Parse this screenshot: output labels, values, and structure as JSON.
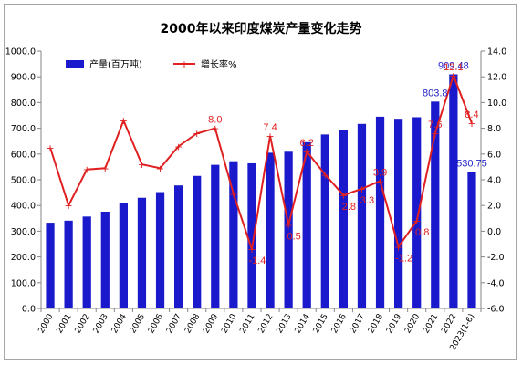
{
  "chart_data": {
    "type": "bar",
    "title": "2000年以来印度煤炭产量变化走势",
    "categories": [
      "2000",
      "2001",
      "2002",
      "2003",
      "2004",
      "2005",
      "2006",
      "2007",
      "2008",
      "2009",
      "2010",
      "2011",
      "2012",
      "2013",
      "2014",
      "2015",
      "2016",
      "2017",
      "2018",
      "2019",
      "2020",
      "2021",
      "2022",
      "2023(1-6)"
    ],
    "series": [
      {
        "name": "产量(百万吨)",
        "type": "bar",
        "axis": "left",
        "color": "#1a1acc",
        "values": [
          333,
          341,
          357,
          376,
          408,
          430,
          452,
          478,
          515,
          558,
          572,
          564,
          605,
          609,
          646,
          676,
          693,
          717,
          745,
          737,
          743,
          803.8,
          909.48,
          530.75
        ]
      },
      {
        "name": "增长率%",
        "type": "line",
        "axis": "right",
        "color": "#e02020",
        "values": [
          6.5,
          2.0,
          4.8,
          4.9,
          8.6,
          5.2,
          4.9,
          6.6,
          7.6,
          8.0,
          2.9,
          -1.4,
          7.4,
          0.5,
          6.2,
          4.4,
          2.8,
          3.3,
          3.9,
          -1.2,
          0.8,
          7.6,
          12.1,
          8.4
        ]
      }
    ],
    "y_left": {
      "min": 0,
      "max": 1000,
      "step": 100,
      "ticks": [
        "0.0",
        "100.0",
        "200.0",
        "300.0",
        "400.0",
        "500.0",
        "600.0",
        "700.0",
        "800.0",
        "900.0",
        "1000.0"
      ]
    },
    "y_right": {
      "min": -6,
      "max": 14,
      "step": 2,
      "ticks": [
        "-6.0",
        "-4.0",
        "-2.0",
        "0.0",
        "2.0",
        "4.0",
        "6.0",
        "8.0",
        "10.0",
        "12.0",
        "14.0"
      ]
    },
    "bar_labels": [
      {
        "index": 21,
        "text": "803.8"
      },
      {
        "index": 22,
        "text": "909.48"
      },
      {
        "index": 23,
        "text": "530.75"
      }
    ],
    "line_labels": [
      {
        "index": 9,
        "text": "8.0"
      },
      {
        "index": 11,
        "text": "-1.4"
      },
      {
        "index": 12,
        "text": "7.4"
      },
      {
        "index": 13,
        "text": "0.5"
      },
      {
        "index": 14,
        "text": "6.2"
      },
      {
        "index": 16,
        "text": "2.8"
      },
      {
        "index": 17,
        "text": "3.3"
      },
      {
        "index": 18,
        "text": "3.9"
      },
      {
        "index": 19,
        "text": "-1.2"
      },
      {
        "index": 20,
        "text": "0.8"
      },
      {
        "index": 21,
        "text": "7.6"
      },
      {
        "index": 22,
        "text": "12.1"
      },
      {
        "index": 23,
        "text": "8.4"
      }
    ],
    "legend_position": "top-left",
    "grid": false
  }
}
